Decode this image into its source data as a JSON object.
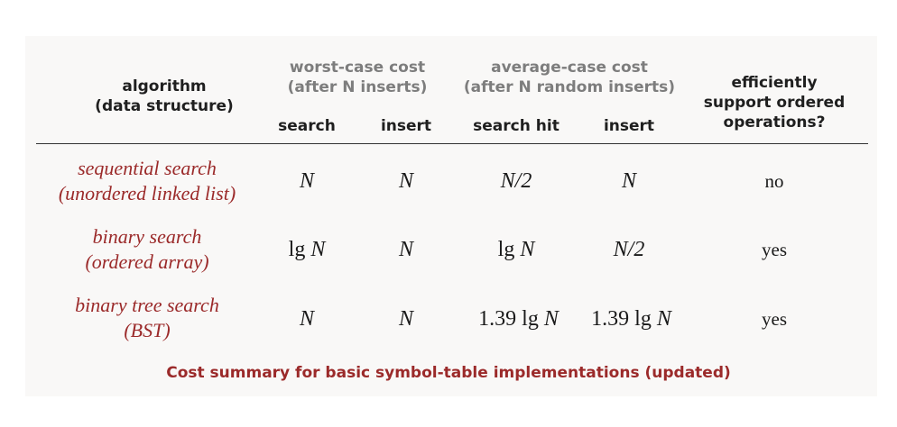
{
  "header": {
    "algorithm_line1": "algorithm",
    "algorithm_line2": "(data structure)",
    "worst_line1": "worst-case cost",
    "worst_line2": "(after N inserts)",
    "avg_line1": "average-case cost",
    "avg_line2": "(after N random inserts)",
    "ordered_line1": "efficiently",
    "ordered_line2": "support ordered",
    "ordered_line3": "operations?",
    "sub_search": "search",
    "sub_insert": "insert",
    "sub_search_hit": "search hit",
    "sub_insert2": "insert"
  },
  "rows": [
    {
      "label1": "sequential search",
      "label2": "(unordered linked list)",
      "worst_search": "N",
      "worst_insert": "N",
      "avg_hit": "N/2",
      "avg_insert": "N",
      "ordered": "no"
    },
    {
      "label1": "binary search",
      "label2": "(ordered array)",
      "worst_search_prefix": "lg ",
      "worst_search_var": "N",
      "worst_insert": "N",
      "avg_hit_prefix": "lg ",
      "avg_hit_var": "N",
      "avg_insert": "N/2",
      "ordered": "yes"
    },
    {
      "label1": "binary tree search",
      "label2": "(BST)",
      "worst_search": "N",
      "worst_insert": "N",
      "avg_hit_prefix": "1.39 lg ",
      "avg_hit_var": "N",
      "avg_insert_prefix": "1.39 lg ",
      "avg_insert_var": "N",
      "ordered": "yes"
    }
  ],
  "caption": "Cost summary for basic symbol-table implementations (updated)"
}
